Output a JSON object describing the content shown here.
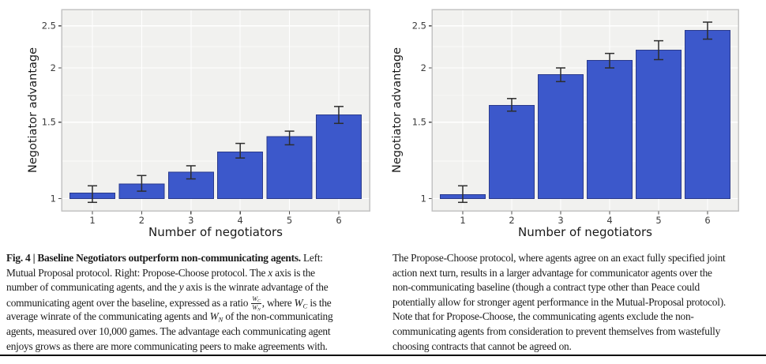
{
  "figure": {
    "label": "Fig. 4",
    "caption_left": {
      "lines": [
        [
          {
            "t": "Fig. 4 | Baseline Negotiators outperform non-communicating agents.",
            "b": true
          },
          {
            "t": " Left:"
          }
        ],
        [
          {
            "t": "Mutual Proposal protocol. Right: Propose-Choose protocol. The "
          },
          {
            "t": "x",
            "i": true
          },
          {
            "t": " axis is the"
          }
        ],
        [
          {
            "t": "number of communicating agents, and the "
          },
          {
            "t": "y",
            "i": true
          },
          {
            "t": " axis is the winrate advantage of the"
          }
        ],
        [
          {
            "t": "communicating agent over the baseline, expressed as a ratio "
          },
          {
            "fr": {
              "n": [
                {
                  "t": "W",
                  "i": true
                },
                {
                  "t": "C",
                  "i": true,
                  "sub": true
                }
              ],
              "d": [
                {
                  "t": "W",
                  "i": true
                },
                {
                  "t": "N",
                  "i": true,
                  "sub": true
                }
              ]
            }
          },
          {
            "t": ", where "
          },
          {
            "t": "W",
            "i": true
          },
          {
            "t": "C",
            "i": true,
            "sub": true
          },
          {
            "t": " is the"
          }
        ],
        [
          {
            "t": "average winrate of the communicating agents and "
          },
          {
            "t": "W",
            "i": true
          },
          {
            "t": "N",
            "i": true,
            "sub": true
          },
          {
            "t": " of the non-communicating"
          }
        ],
        [
          {
            "t": "agents, measured over 10,000 games. The advantage each communicating agent"
          }
        ],
        [
          {
            "t": "enjoys grows as there are more communicating peers to make agreements with."
          }
        ]
      ]
    },
    "caption_right": {
      "lines": [
        [
          {
            "t": "The Propose-Choose protocol, where agents agree on an exact fully specified joint"
          }
        ],
        [
          {
            "t": "action next turn, results in a larger advantage for communicator agents over the"
          }
        ],
        [
          {
            "t": "non-communicating baseline (though a contract type other than Peace could"
          }
        ],
        [
          {
            "t": "potentially allow for stronger agent performance in the Mutual-Proposal protocol)."
          }
        ],
        [
          {
            "t": "Note that for Propose-Choose, the communicating agents exclude the non-"
          }
        ],
        [
          {
            "t": "communicating agents from consideration to prevent themselves from wastefully"
          }
        ],
        [
          {
            "t": "choosing contracts that cannot be agreed on."
          }
        ]
      ]
    }
  },
  "chart_data": [
    {
      "type": "bar",
      "name": "Mutual Proposal protocol",
      "title": "",
      "xlabel": "Number of negotiators",
      "ylabel": "Negotiator advantage",
      "categories": [
        "1",
        "2",
        "3",
        "4",
        "5",
        "6"
      ],
      "values": [
        1.03,
        1.08,
        1.15,
        1.28,
        1.39,
        1.56
      ],
      "err_low": [
        0.98,
        1.04,
        1.11,
        1.24,
        1.33,
        1.49
      ],
      "err_high": [
        1.07,
        1.13,
        1.19,
        1.34,
        1.43,
        1.63
      ],
      "bar_base": 1.0,
      "yscale": "log",
      "ylim": [
        0.937,
        2.727
      ],
      "yticks": [
        1,
        1.5,
        2,
        2.5
      ],
      "ytick_labels": [
        "1",
        "1.5",
        "2",
        "2.5"
      ],
      "minor_yticks": [
        1.22,
        1.73,
        2.24
      ],
      "grid": true,
      "legend": "none"
    },
    {
      "type": "bar",
      "name": "Propose-Choose protocol",
      "title": "",
      "xlabel": "Number of negotiators",
      "ylabel": "Negotiator advantage",
      "categories": [
        "1",
        "2",
        "3",
        "4",
        "5",
        "6"
      ],
      "values": [
        1.02,
        1.64,
        1.93,
        2.08,
        2.2,
        2.44
      ],
      "err_low": [
        0.98,
        1.59,
        1.86,
        2.0,
        2.09,
        2.33
      ],
      "err_high": [
        1.07,
        1.7,
        2.0,
        2.16,
        2.31,
        2.55
      ],
      "bar_base": 1.0,
      "yscale": "log",
      "ylim": [
        0.937,
        2.727
      ],
      "yticks": [
        1,
        1.5,
        2,
        2.5
      ],
      "ytick_labels": [
        "1",
        "1.5",
        "2",
        "2.5"
      ],
      "minor_yticks": [
        1.22,
        1.73,
        2.24
      ],
      "grid": true,
      "legend": "none"
    }
  ],
  "colors": {
    "bar_fill": "#3c58cb",
    "bar_edge": "#2a3a8c",
    "panel_bg": "#f1f1ef",
    "gridline": "#ffffff",
    "panel_border": "#c3c3c3",
    "error_bar": "#2d2d2d",
    "tick_mark": "#4a4a4a",
    "tick_label": "#3c3c3c",
    "axis_label": "#1a1a1a",
    "rule": "#0a0a0a"
  }
}
